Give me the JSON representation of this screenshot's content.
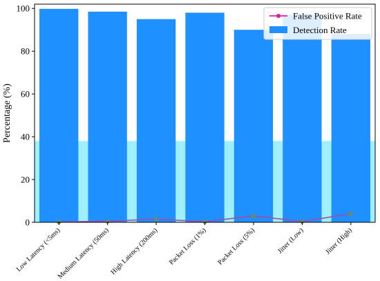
{
  "chart_data": {
    "type": "bar",
    "title": "",
    "xlabel": "",
    "ylabel": "Percentage (%)",
    "ylim": [
      0,
      102
    ],
    "yticks": [
      0,
      20,
      40,
      60,
      80,
      100
    ],
    "grid": false,
    "legend_position": "top-right",
    "categories": [
      "Low Latency (<5ms)",
      "Medium Latency (50ms)",
      "High Latency (200ms)",
      "Packet Loss (1%)",
      "Packet Loss (5%)",
      "Jitter (Low)",
      "Jitter (High)"
    ],
    "series": [
      {
        "name": "Detection Rate",
        "kind": "bar",
        "color": "#1e90ff",
        "values": [
          99.8,
          98.5,
          95.0,
          98.0,
          90.0,
          97.0,
          88.0
        ]
      },
      {
        "name": "False Positive Rate",
        "kind": "line",
        "color": "#e6199b",
        "values": [
          0.2,
          0.5,
          1.5,
          0.3,
          3.0,
          0.4,
          4.0
        ]
      }
    ],
    "background_band": {
      "kind": "bar",
      "color": "#9ef0ff",
      "values": [
        38,
        38,
        38,
        38,
        38,
        38,
        38
      ]
    }
  }
}
